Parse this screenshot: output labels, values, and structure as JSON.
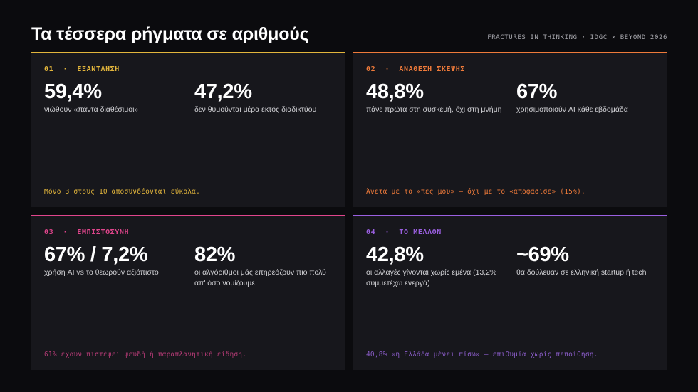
{
  "header": {
    "title": "Τα τέσσερα ρήγματα σε αριθμούς",
    "kicker": "FRACTURES IN THINKING · IDGC × BEYOND 2026"
  },
  "colors": {
    "yellow": "#e2b53c",
    "orange": "#ee7a3a",
    "pink": "#e0458c",
    "purple": "#9a5fe0"
  },
  "cards": [
    {
      "number": "01",
      "label": "01  ·  ΕΞΑΝΤΛΗΣΗ",
      "stats": [
        {
          "value": "59,4%",
          "desc": "νιώθουν «πάντα διαθέσιμοι»"
        },
        {
          "value": "47,2%",
          "desc": "δεν θυμούνται μέρα εκτός διαδικτύου"
        }
      ],
      "footnote": "Μόνο 3 στους 10 αποσυνδέονται εύκολα."
    },
    {
      "number": "02",
      "label": "02  ·  ΑΝΑΘΕΣΗ ΣΚΕΨΗΣ",
      "stats": [
        {
          "value": "48,8%",
          "desc": "πάνε πρώτα στη συσκευή, όχι στη μνήμη"
        },
        {
          "value": "67%",
          "desc": "χρησιμοποιούν AI κάθε εβδομάδα"
        }
      ],
      "footnote": "Άνετα με το «πες μου» — όχι με το «αποφάσισε» (15%)."
    },
    {
      "number": "03",
      "label": "03  ·  ΕΜΠΙΣΤΟΣΥΝΗ",
      "stats": [
        {
          "value": "67% / 7,2%",
          "desc": "χρήση AI vs το θεωρούν αξιόπιστο"
        },
        {
          "value": "82%",
          "desc": "οι αλγόριθμοι μάς επηρεάζουν πιο πολύ απ' όσο νομίζουμε"
        }
      ],
      "footnote": "61% έχουν πιστέψει ψευδή ή παραπλανητική είδηση."
    },
    {
      "number": "04",
      "label": "04  ·  ΤΟ ΜΕΛΛΟΝ",
      "stats": [
        {
          "value": "42,8%",
          "desc": "οι αλλαγές γίνονται χωρίς εμένα (13,2% συμμετέχω ενεργά)"
        },
        {
          "value": "~69%",
          "desc": "θα δούλευαν σε ελληνική startup ή tech"
        }
      ],
      "footnote": "40,8% «η Ελλάδα μένει πίσω» — επιθυμία χωρίς πεποίθηση."
    }
  ]
}
